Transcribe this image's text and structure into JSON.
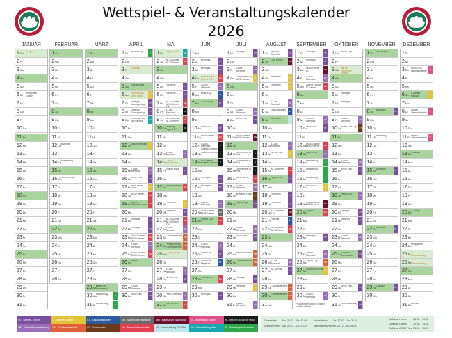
{
  "title": "Wettspiel- & Veranstaltungskalender",
  "year": "2026",
  "logo_text": "GOLFCLUB DREIBÄUMEN e.V.",
  "weekday_labels": [
    "Mo",
    "Di",
    "Mi",
    "Do",
    "Fr",
    "Sa",
    "So"
  ],
  "colors": {
    "sunday": "#a9d49d",
    "holiday": "#d9ecd2"
  },
  "tags": {
    "OT": {
      "label": "OT - Offenes Turnier",
      "color": "#7b4fa0"
    },
    "IT": {
      "label": "IT - Internes Turnier",
      "color": "#e2c33a"
    },
    "ET": {
      "label": "ET - Einladungsturnier",
      "color": "#2c5aa0"
    },
    "MH": {
      "label": "MH - Mannschaft Heimspiel",
      "color": "#6b6b6b"
    },
    "MN": {
      "label": "MN - Mannschaft Nachholsp.",
      "color": "#6b1030"
    },
    "VI": {
      "label": "VI - Veranstaltung intern",
      "color": "#e0508a"
    },
    "R": {
      "label": "R - Reisen (OM/AK 50 Plus)",
      "color": "#1a1a1a"
    },
    "OK": {
      "label": "OK - Offene Seniorenwertung",
      "color": "#9b6fb8"
    },
    "CM": {
      "label": "CM - Clubmeisterschaft",
      "color": "#e0603a"
    },
    "GT": {
      "label": "GT - Gästeturnier",
      "color": "#6b3a1a"
    },
    "MA": {
      "label": "MA - Mannschaft auswärts",
      "color": "#e04050"
    },
    "VG": {
      "label": "VG - Veranstaltung GV NRW",
      "color": "#bfe6ea"
    },
    "VO": {
      "label": "VO - Veranstaltung offen",
      "color": "#1aa8b0"
    },
    "P": {
      "label": "P - Platzpflegemaßnahmen",
      "color": "#2ca84a"
    }
  },
  "legend_order": [
    [
      "OT",
      "IT",
      "ET",
      "MH",
      "MN",
      "VI",
      "R"
    ],
    [
      "OK",
      "CM",
      "GT",
      "MA",
      "VG",
      "VO",
      "P"
    ]
  ],
  "school_holidays": [
    {
      "name": "Osterferien",
      "dates": "Mo. 30.03. - Sa. 11.04."
    },
    {
      "name": "Sommerferien",
      "dates": "Mo. 20.07. - Di. 01.09."
    },
    {
      "name": "Herbstferien",
      "dates": "Sa. 17.10. - Sa. 31.10."
    },
    {
      "name": "Weihnachtsferien",
      "dates": "Mi. 23.12. - Mi. 06.01."
    }
  ],
  "trips": [
    {
      "name": "Golfreise Herren",
      "dates": "08.05. - 10.05."
    },
    {
      "name": "Golfreise Damen",
      "dates": "12.06. - 14.06."
    },
    {
      "name": "Golfreise AK 50 Plus",
      "dates": "13.07. - 15.07."
    }
  ],
  "months": [
    {
      "name": "JANUAR",
      "first_weekday": 3,
      "days": 31,
      "events": {
        "1": {
          "t": "Neujahr",
          "hol": true
        },
        "6": {
          "t": "Heilige drei Könige"
        }
      }
    },
    {
      "name": "FEBRUAR",
      "first_weekday": 6,
      "days": 28,
      "events": {
        "12": {
          "t": "Altweiber"
        },
        "14": {
          "t": "Valentinstag"
        },
        "16": {
          "t": "Rosenmontag"
        }
      }
    },
    {
      "name": "MÄRZ",
      "first_weekday": 6,
      "days": 31,
      "events": {
        "29": {
          "t": "Beginn der Sommerzeit"
        },
        "30": {
          "t": "Aerifizierung",
          "tag": "P"
        },
        "31": {
          "t": "Aerifizierung",
          "tag": "P"
        }
      }
    },
    {
      "name": "APRIL",
      "first_weekday": 2,
      "days": 30,
      "events": {
        "1": {
          "t": "Aerifizierung",
          "tag": "P"
        },
        "3": {
          "t": "Karfreitag",
          "hol": true
        },
        "5": {
          "t": "Ostersonntag",
          "hol": true
        },
        "6": {
          "t": "Ostermontag Open Ended",
          "hol": true,
          "tag": "IT"
        },
        "7": {
          "t": "Vierergolf Schnuppertag",
          "tag": "OT"
        },
        "8": {
          "t": "Vierergolf Schnuppertag",
          "tag": "OT"
        },
        "9": {
          "t": "Herrentag Golf und Genuss",
          "tag": "VO"
        },
        "12": {
          "t": "Saisoneröffnung",
          "tag": "IT"
        },
        "15": {
          "t": "9-Loch-Afterwork",
          "tag": "OK"
        },
        "16": {
          "t": "AK 50 Plus",
          "tag": "OT"
        },
        "17": {
          "t": "Team Vegas Event",
          "tag": "IT"
        },
        "18": {
          "t": "AK 30 Herren",
          "tag": "MA"
        },
        "19": {
          "t": "Jugend Clubmeisterschaft",
          "tag": "MA"
        },
        "21": {
          "t": "Heimspiel",
          "tag": "OT"
        },
        "22": {
          "t": "Heimspiel",
          "tag": "OT"
        },
        "23": {
          "t": "AK 50 Damen AK 50 Herren 1+2",
          "tag": "MA"
        },
        "24": {
          "t": "9-Loch-Afterwork",
          "tag": "OK"
        },
        "25": {
          "t": "AK 50 Damen AK 50 Herren",
          "tag": "MA"
        },
        "26": {
          "t": "Jugend"
        },
        "29": {
          "t": "9-Loch-Afterwork",
          "tag": "OK"
        },
        "30": {
          "t": "AK 50 Plus",
          "tag": "OT"
        }
      }
    },
    {
      "name": "MAI",
      "first_weekday": 4,
      "days": 31,
      "events": {
        "1": {
          "t": "Tag der Arbeit",
          "hol": true,
          "tag": "VO"
        },
        "2": {
          "t": "AK 50 Damen AK 50 Herren",
          "tag": "MA"
        },
        "5": {
          "t": "Heimspiel",
          "tag": "OT"
        },
        "6": {
          "t": "Heimspiel",
          "tag": "OT"
        },
        "7": {
          "t": "AK 30 Damen AK 30 Herren 1+2",
          "tag": "MA"
        },
        "8": {
          "t": "9-Loch-Afterwork Golfreise Herren",
          "tag": "R"
        },
        "9": {
          "t": "AK 50 Damen AK 50 Herren",
          "tag": "MA"
        },
        "10": {
          "t": "Muttertag Jugend 1+2",
          "tag": "R"
        },
        "13": {
          "t": "9-Loch-Afterwork",
          "tag": "OK"
        },
        "14": {
          "t": "Christi Himmelfahrt",
          "hol": true
        },
        "15": {
          "t": "Jugend Pokal",
          "tag": "OT"
        },
        "17": {
          "t": "Mannschaftsmeisterschaft",
          "tag": "MA"
        },
        "19": {
          "t": "Heimspiel",
          "tag": "IT"
        },
        "20": {
          "t": "Heimspiel",
          "tag": "OT"
        },
        "21": {
          "t": "AK 50 Damen AK 50 Herren 1+2",
          "tag": "MA"
        },
        "22": {
          "t": "9-Loch-Afterwork",
          "tag": "OK"
        },
        "23": {
          "t": "Clubmeisterschaften",
          "tag": "CM"
        },
        "24": {
          "t": "Pfingstsonntag Clubmeisterschaften",
          "hol": true,
          "tag": "CM"
        },
        "25": {
          "t": "Pfingstmontag",
          "hol": true
        },
        "27": {
          "t": "9-Loch-Afterwork",
          "tag": "OK"
        },
        "28": {
          "t": "AK 50 Plus",
          "tag": "OT"
        },
        "30": {
          "t": "Preis / Rheinkup",
          "tag": "OK"
        },
        "31": {
          "t": "OGL Herren",
          "tag": "MA"
        }
      }
    },
    {
      "name": "JUNI",
      "first_weekday": 0,
      "days": 30,
      "events": {
        "2": {
          "t": "Heimspiel",
          "tag": "OT"
        },
        "3": {
          "t": "Heimspiel",
          "tag": "OT"
        },
        "4": {
          "t": "Fronleichnam Jugend 1+2",
          "hol": true,
          "tag": "MA"
        },
        "5": {
          "t": "9-Loch-Afterwork",
          "tag": "OK"
        },
        "6": {
          "t": "Brass Cup",
          "tag": "ET"
        },
        "7": {
          "t": "9-Loch Bully",
          "tag": "OT"
        },
        "10": {
          "t": "AK 50 Plus",
          "tag": "OT"
        },
        "11": {
          "t": "AK 50 Herren",
          "tag": "MA"
        },
        "12": {
          "t": "9-Loch-Afterwork Golfreise Damen",
          "tag": "R"
        },
        "13": {
          "t": "Golfreise Damen",
          "tag": "R"
        },
        "14": {
          "t": "OGL Herren Golfreise Damen",
          "tag": "R"
        },
        "16": {
          "t": "Heimspiel",
          "tag": "OT"
        },
        "17": {
          "t": "Heimspiel",
          "tag": "OT"
        },
        "19": {
          "t": "9-Loch-Afterwork",
          "tag": "OK"
        },
        "20": {
          "t": "AK 50 Damen AK 50 Herren",
          "tag": "MH"
        },
        "21": {
          "t": "Jugend Cup",
          "tag": "MA"
        },
        "24": {
          "t": "9-Loch-Afterwork",
          "tag": "OK"
        },
        "25": {
          "t": "AK 50 Plus",
          "tag": "OT"
        },
        "26": {
          "t": "Turnier der Mitglieder",
          "tag": "ET"
        },
        "28": {
          "t": "OGL Herren",
          "tag": "MA"
        },
        "30": {
          "t": "Heimspiel",
          "tag": "OT"
        }
      }
    },
    {
      "name": "JULI",
      "first_weekday": 2,
      "days": 31,
      "events": {
        "1": {
          "t": "Heimspiel",
          "tag": "OT"
        },
        "3": {
          "t": "9-Loch-Afterwork",
          "tag": "OK"
        },
        "4": {
          "t": "Clubmeister Cup AK 30 Damen",
          "tag": "IT"
        },
        "8": {
          "t": "9-Loch-Afterwork",
          "tag": "OK"
        },
        "9": {
          "t": "AK 50 Plus",
          "tag": "OT"
        },
        "11": {
          "t": "AK 50 Damen AK 50 Herren",
          "tag": "MN"
        },
        "13": {
          "t": "Golfreise AK 50 Plus",
          "tag": "R"
        },
        "14": {
          "t": "Golfreise AK 50 Plus",
          "tag": "R"
        },
        "15": {
          "t": "Golfreise AK 50 Plus",
          "tag": "R"
        },
        "16": {
          "t": "AK 50 Herren",
          "tag": "MA"
        },
        "17": {
          "t": "9-Loch-Afterwork",
          "tag": "OK"
        },
        "18": {
          "t": "Bergische Golfer",
          "tag": "GT"
        },
        "19": {
          "t": "Jugend Cup",
          "tag": "OT"
        },
        "22": {
          "t": "9-Loch-Afterwork",
          "tag": "OK"
        },
        "23": {
          "t": "AK 50 Plus",
          "tag": "OT"
        },
        "25": {
          "t": "Clubmeisterschaften",
          "tag": "CM"
        },
        "26": {
          "t": "Clubmeisterschaften",
          "tag": "CM"
        },
        "28": {
          "t": "Heimspiel",
          "tag": "OT"
        },
        "29": {
          "t": "Heimspiel",
          "tag": "IT"
        },
        "31": {
          "t": "9-Loch-Afterwork",
          "tag": "OK"
        }
      }
    },
    {
      "name": "AUGUST",
      "first_weekday": 5,
      "days": 31,
      "events": {
        "1": {
          "t": "Sommer-Scramble",
          "tag": "OT"
        },
        "2": {
          "t": "OGL Herren",
          "tag": "MN"
        },
        "4": {
          "t": "Heimspiel",
          "tag": "IT"
        },
        "5": {
          "t": "Heimspiel",
          "tag": "IT"
        },
        "7": {
          "t": "9-Loch-Afterwork",
          "tag": "OK"
        },
        "8": {
          "t": "Duplo Bielefeld",
          "tag": "ET"
        },
        "9": {
          "t": "Brittenfest",
          "tag": "VG"
        },
        "12": {
          "t": "9-Loch-Afterwork",
          "tag": "OK"
        },
        "13": {
          "t": "AK 50 Plus",
          "tag": "IT"
        },
        "15": {
          "t": "AK 30 Herren",
          "tag": "MA"
        },
        "16": {
          "t": "Jugend Cup",
          "tag": "OT"
        },
        "18": {
          "t": "Heimspiel",
          "tag": "OT"
        },
        "19": {
          "t": "Heimspiel",
          "tag": "OT"
        },
        "20": {
          "t": "AK 50 Herren 1+2",
          "tag": "MN"
        },
        "21": {
          "t": "Freunde",
          "tag": "ET"
        },
        "22": {
          "t": "AK 50 Damen AK 50 Herren",
          "tag": "MA"
        },
        "26": {
          "t": "9-Loch-Afterwork",
          "tag": "OK"
        },
        "27": {
          "t": "AK 50 Plus",
          "tag": "OT"
        },
        "29": {
          "t": "Clubmeisterschaften",
          "tag": "CM"
        },
        "30": {
          "t": "Clubmeisterschaften",
          "tag": "CM"
        }
      }
    },
    {
      "name": "SEPTEMBER",
      "first_weekday": 1,
      "days": 30,
      "events": {
        "1": {
          "t": "Heimspiel",
          "tag": "OT"
        },
        "2": {
          "t": "Heimspiel",
          "tag": "OT"
        },
        "3": {
          "t": "AK 50 Herren 1+2",
          "tag": "MN"
        },
        "4": {
          "t": "9-Loch-Afterwork",
          "tag": "OK"
        },
        "5": {
          "t": "Jugend Cup AK 50 Damen",
          "tag": "MA"
        },
        "9": {
          "t": "9-Loch-Afterwork",
          "tag": "OK"
        },
        "10": {
          "t": "AK 50 Plus",
          "tag": "OT"
        },
        "12": {
          "t": "AK 50 Damen AK 50 Herren",
          "tag": "MA"
        },
        "13": {
          "t": "Jugend 1+2",
          "tag": "OK"
        },
        "14": {
          "t": "Aerifizierung",
          "tag": "P"
        },
        "15": {
          "t": "Aerifizierung",
          "tag": "P"
        },
        "16": {
          "t": "Aerifizierung",
          "tag": "P"
        },
        "17": {
          "t": "AK 50 Plus",
          "tag": "IT"
        },
        "19": {
          "t": "AK 50 Damen AK 50 Herren",
          "tag": "MN"
        },
        "20": {
          "t": "Jugend 1",
          "tag": "MA"
        },
        "23": {
          "t": "Heimspiel",
          "tag": "OT"
        },
        "25": {
          "t": "9-Loch-Afterwork",
          "tag": "OK"
        },
        "26": {
          "t": "Jugend Cup",
          "tag": "CM"
        },
        "27": {
          "t": "Clubmeisterschaften",
          "tag": "IT"
        },
        "30": {
          "t": "9-Loch-Afterwork",
          "tag": "OK"
        }
      },
      "footnote": "*Clubmeisterschaft in Hälften und Brut-Wege"
    },
    {
      "name": "OKTOBER",
      "first_weekday": 3,
      "days": 31,
      "events": {
        "1": {
          "t": "AK 50 Plus"
        },
        "3": {
          "t": "Tag der Deutschen Einheit",
          "hol": true
        },
        "6": {
          "t": "Heimspiel"
        },
        "7": {
          "t": "Heimspiel"
        },
        "9": {
          "t": "9-Loch-Afterwork",
          "tag": "OK"
        },
        "10": {
          "t": "Winter Golf Cup",
          "tag": "GT"
        },
        "14": {
          "t": "9-Loch-Afterwork",
          "tag": "OK"
        },
        "15": {
          "t": "AK 50 Plus",
          "tag": "OT"
        },
        "18": {
          "t": "Herbst-Cup",
          "tag": "OK"
        },
        "20": {
          "t": "Vierergolf",
          "tag": "OT"
        },
        "21": {
          "t": "Vierergolf",
          "tag": "OT"
        },
        "23": {
          "t": "9-Loch-Afterwork",
          "tag": "OK"
        },
        "25": {
          "t": "Ende der Sommerzeit",
          "tag": "OT"
        },
        "29": {
          "t": "AK 50 Plus",
          "tag": "OT"
        },
        "31": {
          "t": "Reformationstag",
          "tag": "OT"
        }
      }
    },
    {
      "name": "NOVEMBER",
      "first_weekday": 6,
      "days": 30,
      "events": {
        "1": {
          "t": "Allerheiligen",
          "hol": true
        },
        "8": {
          "t": "Wintercup",
          "tag": "OT"
        },
        "11": {
          "t": "Martinstag"
        },
        "15": {
          "t": "Wintercup",
          "tag": "OT"
        },
        "22": {
          "t": "Wintercup",
          "tag": "OT"
        },
        "29": {
          "t": "1. Advent",
          "tag": "OT"
        }
      }
    },
    {
      "name": "DEZEMBER",
      "first_weekday": 1,
      "days": 31,
      "events": {
        "3": {
          "t": "AK 50 Plus Weihnachtsfeier",
          "tag": "VI"
        },
        "6": {
          "t": "2. Advent Nikolaus",
          "tag": "IT"
        },
        "8": {
          "t": "Damen Weihnachtsfeier",
          "tag": "VI"
        },
        "11": {
          "t": "Herren Weihnachtsfeier",
          "tag": "VI"
        },
        "13": {
          "t": "3. Advent"
        },
        "20": {
          "t": "4. Advent"
        },
        "24": {
          "t": "Heiligabend"
        },
        "25": {
          "t": "1. Weihnachtstag",
          "hol": true
        },
        "26": {
          "t": "2. Weihnachtstag",
          "hol": true
        },
        "31": {
          "t": "Silvester"
        }
      }
    }
  ]
}
